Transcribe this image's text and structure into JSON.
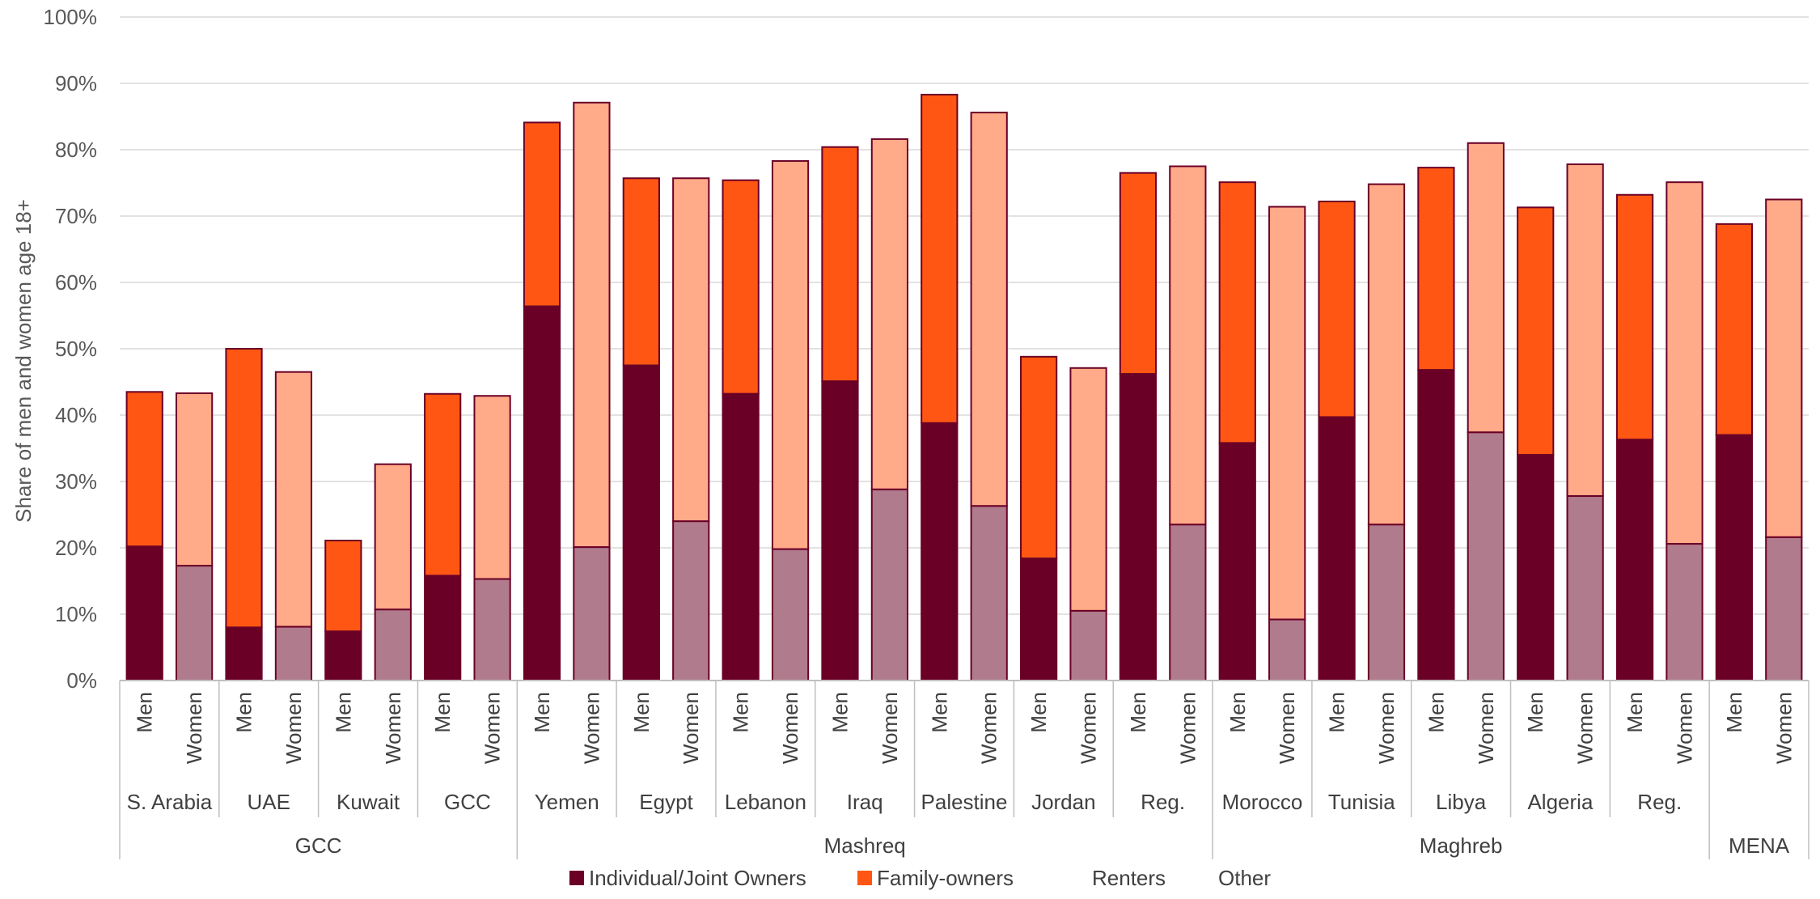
{
  "chart_data": {
    "type": "bar",
    "stacked": true,
    "ylabel": "Share of men and women age 18+",
    "ylim": [
      0,
      100
    ],
    "y_ticks": [
      "0%",
      "10%",
      "20%",
      "30%",
      "40%",
      "50%",
      "60%",
      "70%",
      "80%",
      "90%",
      "100%"
    ],
    "grid": true,
    "legend_position": "bottom",
    "colors": {
      "men_owner": "#6b0027",
      "men_family": "#ff5713",
      "women_owner": "#b07b8c",
      "women_family": "#ffaa88",
      "bar_outline": "#6b0027",
      "grid": "#d9d9d9",
      "axis": "#bfbfbf"
    },
    "legend": [
      {
        "label": "Individual/Joint Owners",
        "color": "#6b0027"
      },
      {
        "label": "Family-owners",
        "color": "#ff5713"
      },
      {
        "label": "Renters",
        "color": ""
      },
      {
        "label": "Other",
        "color": ""
      }
    ],
    "regions": [
      {
        "name": "GCC",
        "countries": [
          "S. Arabia",
          "UAE",
          "Kuwait",
          "GCC"
        ]
      },
      {
        "name": "Mashreq",
        "countries": [
          "Yemen",
          "Egypt",
          "Lebanon",
          "Iraq",
          "Palestine",
          "Jordan",
          "Reg."
        ]
      },
      {
        "name": "Maghreb",
        "countries": [
          "Morocco",
          "Tunisia",
          "Libya",
          "Algeria",
          "Reg."
        ]
      },
      {
        "name": "MENA",
        "countries": [
          ""
        ]
      }
    ],
    "bars": [
      {
        "gender": "Men",
        "country": "S. Arabia",
        "owner": 20.2,
        "family": 23.3
      },
      {
        "gender": "Women",
        "country": "S. Arabia",
        "owner": 17.3,
        "family": 26.0
      },
      {
        "gender": "Men",
        "country": "UAE",
        "owner": 8.0,
        "family": 42.0
      },
      {
        "gender": "Women",
        "country": "UAE",
        "owner": 8.1,
        "family": 38.4
      },
      {
        "gender": "Men",
        "country": "Kuwait",
        "owner": 7.4,
        "family": 13.7
      },
      {
        "gender": "Women",
        "country": "Kuwait",
        "owner": 10.7,
        "family": 21.9
      },
      {
        "gender": "Men",
        "country": "GCC",
        "owner": 15.8,
        "family": 27.4
      },
      {
        "gender": "Women",
        "country": "GCC",
        "owner": 15.3,
        "family": 27.6
      },
      {
        "gender": "Men",
        "country": "Yemen",
        "owner": 56.4,
        "family": 27.7
      },
      {
        "gender": "Women",
        "country": "Yemen",
        "owner": 20.1,
        "family": 67.0
      },
      {
        "gender": "Men",
        "country": "Egypt",
        "owner": 47.5,
        "family": 28.2
      },
      {
        "gender": "Women",
        "country": "Egypt",
        "owner": 24.0,
        "family": 51.7
      },
      {
        "gender": "Men",
        "country": "Lebanon",
        "owner": 43.2,
        "family": 32.2
      },
      {
        "gender": "Women",
        "country": "Lebanon",
        "owner": 19.8,
        "family": 58.5
      },
      {
        "gender": "Men",
        "country": "Iraq",
        "owner": 45.1,
        "family": 35.3
      },
      {
        "gender": "Women",
        "country": "Iraq",
        "owner": 28.8,
        "family": 52.8
      },
      {
        "gender": "Men",
        "country": "Palestine",
        "owner": 38.8,
        "family": 49.5
      },
      {
        "gender": "Women",
        "country": "Palestine",
        "owner": 26.3,
        "family": 59.3
      },
      {
        "gender": "Men",
        "country": "Jordan",
        "owner": 18.4,
        "family": 30.4
      },
      {
        "gender": "Women",
        "country": "Jordan",
        "owner": 10.5,
        "family": 36.6
      },
      {
        "gender": "Men",
        "country": "Reg.",
        "owner": 46.2,
        "family": 30.3
      },
      {
        "gender": "Women",
        "country": "Reg.",
        "owner": 23.5,
        "family": 54.0
      },
      {
        "gender": "Men",
        "country": "Morocco",
        "owner": 35.8,
        "family": 39.3
      },
      {
        "gender": "Women",
        "country": "Morocco",
        "owner": 9.2,
        "family": 62.2
      },
      {
        "gender": "Men",
        "country": "Tunisia",
        "owner": 39.7,
        "family": 32.5
      },
      {
        "gender": "Women",
        "country": "Tunisia",
        "owner": 23.5,
        "family": 51.3
      },
      {
        "gender": "Men",
        "country": "Libya",
        "owner": 46.8,
        "family": 30.5
      },
      {
        "gender": "Women",
        "country": "Libya",
        "owner": 37.4,
        "family": 43.6
      },
      {
        "gender": "Men",
        "country": "Algeria",
        "owner": 34.0,
        "family": 37.3
      },
      {
        "gender": "Women",
        "country": "Algeria",
        "owner": 27.8,
        "family": 50.0
      },
      {
        "gender": "Men",
        "country": "Reg.",
        "owner": 36.3,
        "family": 36.9
      },
      {
        "gender": "Women",
        "country": "Reg.",
        "owner": 20.6,
        "family": 54.5
      },
      {
        "gender": "Men",
        "country": "",
        "owner": 37.0,
        "family": 31.8
      },
      {
        "gender": "Women",
        "country": "",
        "owner": 21.6,
        "family": 50.9
      }
    ]
  }
}
